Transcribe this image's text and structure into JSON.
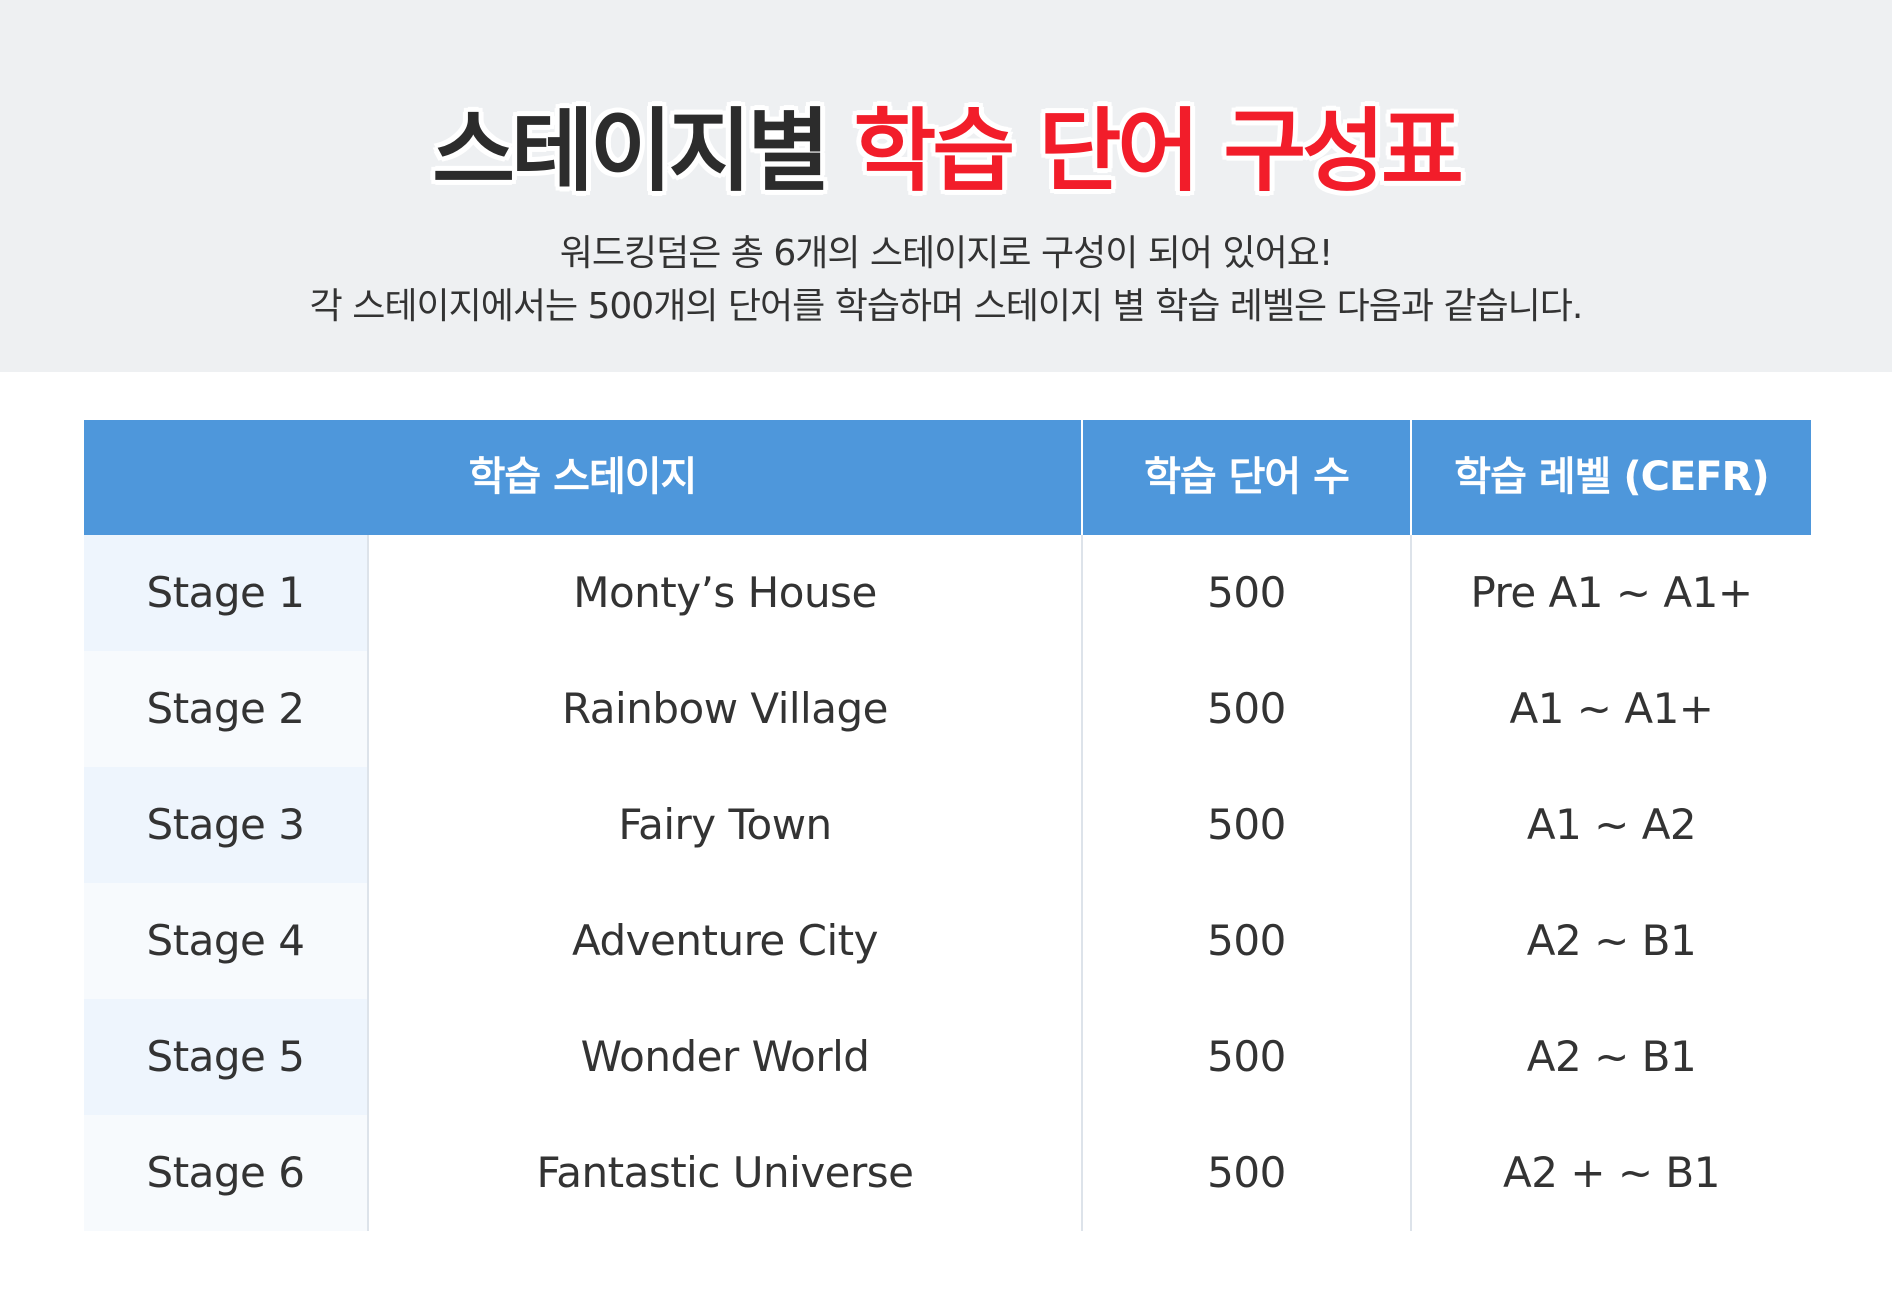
{
  "header": {
    "title_dark": "스테이지별",
    "title_red": "학습 단어 구성표",
    "subtitle_line1": "워드킹덤은 총 6개의 스테이지로 구성이 되어 있어요!",
    "subtitle_line2": "각 스테이지에서는 500개의 단어를 학습하며 스테이지 별 학습 레벨은 다음과 같습니다."
  },
  "colors": {
    "title_dark": "#2c2c2c",
    "title_red": "#f21d2a",
    "header_bg": "#eef0f2",
    "table_header_bg": "#4e97db",
    "stage_cell_bg": "#eef5fd"
  },
  "table": {
    "columns": [
      "학습 스테이지",
      "학습 단어 수",
      "학습 레벨 (CEFR)"
    ],
    "rows": [
      {
        "stage": "Stage 1",
        "name": "Monty’s House",
        "count": "500",
        "level": "Pre A1 ~ A1+"
      },
      {
        "stage": "Stage 2",
        "name": "Rainbow Village",
        "count": "500",
        "level": "A1 ~ A1+"
      },
      {
        "stage": "Stage 3",
        "name": "Fairy Town",
        "count": "500",
        "level": "A1 ~ A2"
      },
      {
        "stage": "Stage 4",
        "name": "Adventure City",
        "count": "500",
        "level": "A2 ~ B1"
      },
      {
        "stage": "Stage 5",
        "name": "Wonder World",
        "count": "500",
        "level": "A2 ~ B1"
      },
      {
        "stage": "Stage 6",
        "name": "Fantastic Universe",
        "count": "500",
        "level": "A2 + ~ B1"
      }
    ]
  }
}
